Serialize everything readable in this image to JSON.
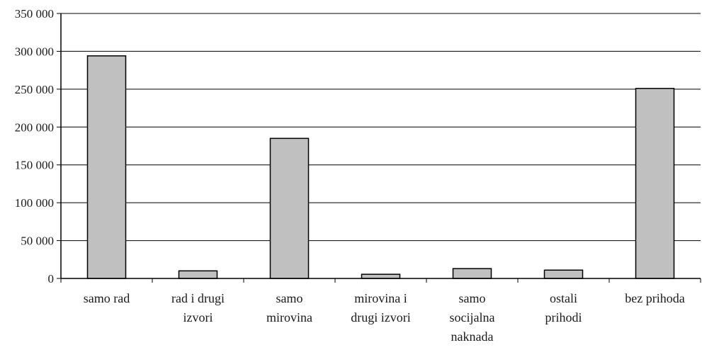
{
  "chart_data": {
    "type": "bar",
    "title": "",
    "xlabel": "",
    "ylabel": "",
    "ylim": [
      0,
      350000
    ],
    "yticks": [
      0,
      50000,
      100000,
      150000,
      200000,
      250000,
      300000,
      350000
    ],
    "ytick_labels": [
      "0",
      "50 000",
      "100 000",
      "150 000",
      "200 000",
      "250 000",
      "300 000",
      "350 000"
    ],
    "grid": true,
    "legend": "none",
    "categories": [
      [
        "samo rad"
      ],
      [
        "rad i drugi",
        "izvori"
      ],
      [
        "samo",
        "mirovina"
      ],
      [
        "mirovina i",
        "drugi izvori"
      ],
      [
        "samo",
        "socijalna",
        "naknada"
      ],
      [
        "ostali",
        "prihodi"
      ],
      [
        "bez prihoda"
      ]
    ],
    "values": [
      294000,
      10000,
      185000,
      5500,
      13000,
      11000,
      251000
    ],
    "bar_color": "#c0c0c0",
    "bar_stroke": "#000000",
    "grid_color": "#000000"
  }
}
